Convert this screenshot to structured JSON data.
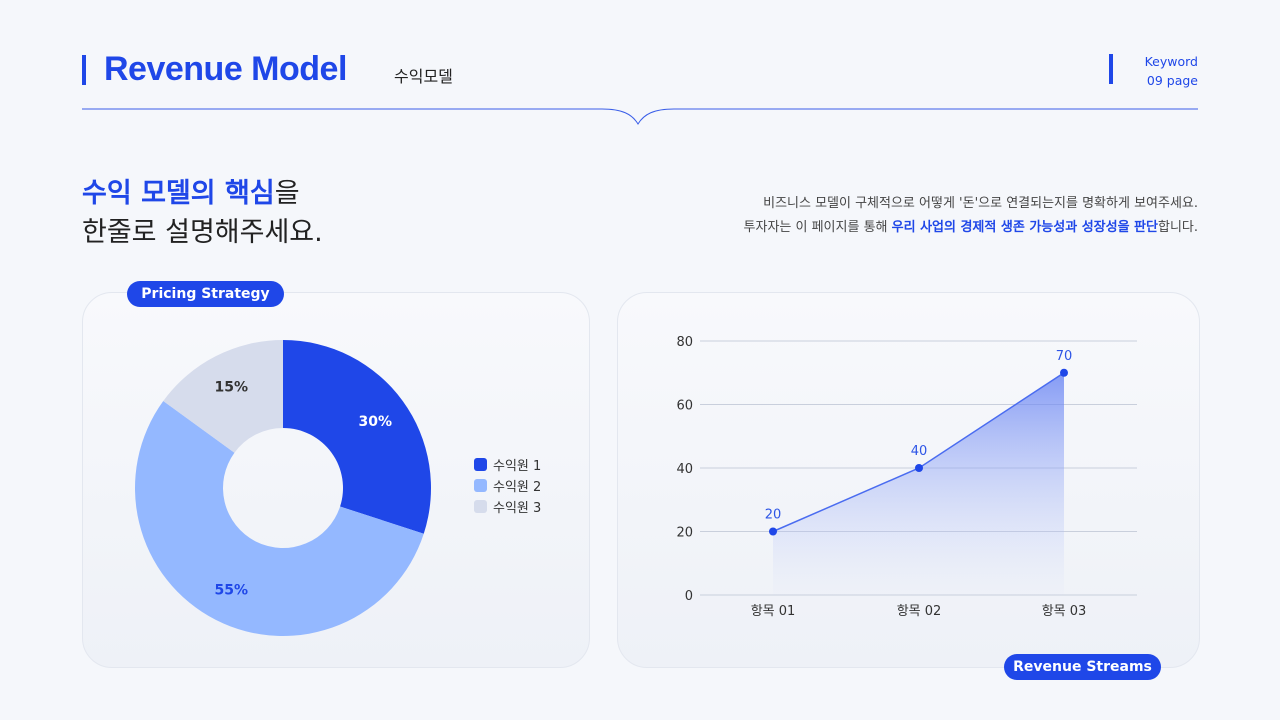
{
  "header": {
    "title": "Revenue Model",
    "subtitle": "수익모델",
    "keyword": "Keyword",
    "page": "09 page"
  },
  "headline": {
    "hl1": "수익 모델",
    "mid": "의 ",
    "hl2": "핵심",
    "end1": "을",
    "line2": "한줄로 설명해주세요."
  },
  "description": {
    "line1": "비즈니스 모델이 구체적으로 어떻게 '돈'으로 연결되는지를 명확하게 보여주세요.",
    "line2_pre": "투자자는 이 페이지를 통해 ",
    "line2_hl": "우리 사업의 경제적 생존 가능성과 성장성을 판단",
    "line2_post": "합니다."
  },
  "badges": {
    "pricing": "Pricing Strategy",
    "streams": "Revenue Streams"
  },
  "colors": {
    "accent": "#1f47e8",
    "series1": "#1f47e8",
    "series2": "#94b8ff",
    "series3": "#d6dcec",
    "line": "#4a6cf0"
  },
  "chart_data": [
    {
      "type": "pie",
      "donut": true,
      "labels": [
        "수익원 1",
        "수익원 2",
        "수익원 3"
      ],
      "values": [
        30,
        55,
        15
      ],
      "value_labels": [
        "30%",
        "55%",
        "15%"
      ],
      "legend": "right"
    },
    {
      "type": "area",
      "categories": [
        "항목 01",
        "항목 02",
        "항목 03"
      ],
      "values": [
        20,
        40,
        70
      ],
      "ylim": [
        0,
        80
      ],
      "yticks": [
        0,
        20,
        40,
        60,
        80
      ],
      "grid": true
    }
  ]
}
